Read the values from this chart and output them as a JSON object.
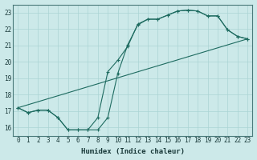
{
  "xlabel": "Humidex (Indice chaleur)",
  "xlim": [
    -0.5,
    23.5
  ],
  "ylim": [
    15.5,
    23.5
  ],
  "xticks": [
    0,
    1,
    2,
    3,
    4,
    5,
    6,
    7,
    8,
    9,
    10,
    11,
    12,
    13,
    14,
    15,
    16,
    17,
    18,
    19,
    20,
    21,
    22,
    23
  ],
  "yticks": [
    16,
    17,
    18,
    19,
    20,
    21,
    22,
    23
  ],
  "background_color": "#cce9e9",
  "grid_color": "#aad4d4",
  "line_color": "#1e6b60",
  "line1_x": [
    0,
    1,
    2,
    3,
    4,
    5,
    6,
    7,
    8,
    9,
    10,
    11,
    12,
    13,
    14,
    15,
    16,
    17,
    18,
    19,
    20,
    21,
    22,
    23
  ],
  "line1_y": [
    17.2,
    16.9,
    17.05,
    17.05,
    16.6,
    15.85,
    15.85,
    15.85,
    15.85,
    16.6,
    19.3,
    21.05,
    22.25,
    22.6,
    22.6,
    22.85,
    23.1,
    23.15,
    23.1,
    22.8,
    22.8,
    21.95,
    21.55,
    21.4
  ],
  "line2_x": [
    0,
    1,
    2,
    3,
    4,
    5,
    6,
    7,
    8,
    9,
    10,
    11,
    12,
    13,
    14,
    15,
    16,
    17,
    18,
    19,
    20,
    21,
    22,
    23
  ],
  "line2_y": [
    17.2,
    16.9,
    17.05,
    17.05,
    16.6,
    15.85,
    15.85,
    15.85,
    16.6,
    19.4,
    20.1,
    20.95,
    22.3,
    22.6,
    22.6,
    22.85,
    23.1,
    23.15,
    23.1,
    22.8,
    22.8,
    21.95,
    21.55,
    21.4
  ],
  "line3_x": [
    0,
    23
  ],
  "line3_y": [
    17.2,
    21.4
  ],
  "line1_markers_x": [
    0,
    1,
    2,
    3,
    4,
    5,
    6,
    7,
    8,
    9,
    10,
    11,
    12,
    13,
    14,
    15,
    16,
    17,
    18,
    19,
    20,
    21,
    22,
    23
  ],
  "line1_markers_y": [
    17.2,
    16.9,
    17.05,
    17.05,
    16.6,
    15.85,
    15.85,
    15.85,
    15.85,
    16.6,
    19.3,
    21.05,
    22.25,
    22.6,
    22.6,
    22.85,
    23.1,
    23.15,
    23.1,
    22.8,
    22.8,
    21.95,
    21.55,
    21.4
  ],
  "line2_markers_x": [
    0,
    1,
    3,
    4,
    5,
    6,
    7,
    8,
    9,
    10,
    11,
    13,
    14,
    18,
    19,
    20,
    21,
    22,
    23
  ],
  "line2_markers_y": [
    17.2,
    16.9,
    17.05,
    16.6,
    15.85,
    15.85,
    15.85,
    16.6,
    19.4,
    20.1,
    20.95,
    22.6,
    22.6,
    23.1,
    22.8,
    22.8,
    21.95,
    21.55,
    21.4
  ]
}
